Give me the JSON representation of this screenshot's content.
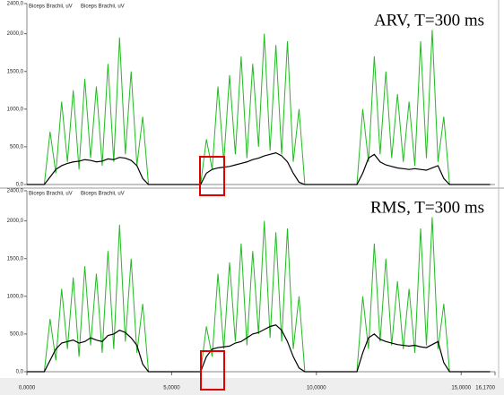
{
  "chart_data": [
    {
      "type": "line",
      "annotation": "ARV, T=300 ms",
      "x": [
        0,
        0.2,
        0.4,
        0.6,
        0.8,
        1,
        1.2,
        1.4,
        1.6,
        1.8,
        2,
        2.2,
        2.4,
        2.6,
        2.8,
        3,
        3.2,
        3.4,
        3.6,
        3.8,
        4,
        4.2,
        4.4,
        4.6,
        4.8,
        5,
        5.2,
        5.4,
        5.6,
        5.8,
        6,
        6.2,
        6.4,
        6.6,
        6.8,
        7,
        7.2,
        7.4,
        7.6,
        7.8,
        8,
        8.2,
        8.4,
        8.6,
        8.8,
        9,
        9.2,
        9.4,
        9.6,
        9.8,
        10,
        10.2,
        10.4,
        10.6,
        10.8,
        11,
        11.2,
        11.4,
        11.6,
        11.8,
        12,
        12.2,
        12.4,
        12.6,
        12.8,
        13,
        13.2,
        13.4,
        13.6,
        13.8,
        14,
        14.2,
        14.4,
        14.6,
        14.8,
        15,
        15.2,
        15.4,
        15.6,
        15.8,
        16
      ],
      "series": [
        {
          "name": "Biceps Brachii, uV",
          "color": "#22bb22",
          "values": [
            0,
            0,
            0,
            0,
            700,
            150,
            1100,
            300,
            1250,
            200,
            1400,
            350,
            1300,
            250,
            1600,
            300,
            1950,
            400,
            1500,
            250,
            900,
            0,
            0,
            0,
            0,
            0,
            0,
            0,
            0,
            0,
            0,
            600,
            200,
            1300,
            300,
            1450,
            400,
            1700,
            350,
            1600,
            500,
            2000,
            450,
            1850,
            400,
            1900,
            300,
            1000,
            0,
            0,
            0,
            0,
            0,
            0,
            0,
            0,
            0,
            0,
            1000,
            300,
            1700,
            400,
            1500,
            350,
            1200,
            300,
            1100,
            250,
            1900,
            350,
            2050,
            300,
            900,
            0,
            0,
            0,
            0,
            0,
            0,
            0,
            0
          ]
        },
        {
          "name": "Biceps Brachii, uV",
          "color": "#000000",
          "values": [
            0,
            0,
            0,
            0,
            100,
            200,
            250,
            280,
            300,
            310,
            330,
            320,
            300,
            310,
            340,
            330,
            360,
            350,
            320,
            250,
            80,
            0,
            0,
            0,
            0,
            0,
            0,
            0,
            0,
            0,
            0,
            150,
            200,
            220,
            230,
            240,
            260,
            280,
            300,
            330,
            350,
            380,
            400,
            420,
            380,
            300,
            150,
            30,
            0,
            0,
            0,
            0,
            0,
            0,
            0,
            0,
            0,
            0,
            150,
            350,
            400,
            300,
            260,
            240,
            220,
            210,
            200,
            210,
            200,
            190,
            220,
            250,
            80,
            0,
            0,
            0,
            0,
            0,
            0,
            0,
            0
          ]
        }
      ],
      "xlim": [
        0,
        16.17
      ],
      "ylim": [
        0,
        2400
      ],
      "yticks": [
        {
          "value": 0,
          "label": "0,0"
        },
        {
          "value": 500,
          "label": "500,0"
        },
        {
          "value": 1000,
          "label": "1000,0"
        },
        {
          "value": 1500,
          "label": "1500,0"
        },
        {
          "value": 2000,
          "label": "2000,0"
        },
        {
          "value": 2400,
          "label": "2400,0"
        }
      ]
    },
    {
      "type": "line",
      "annotation": "RMS, T=300 ms",
      "x": [
        0,
        0.2,
        0.4,
        0.6,
        0.8,
        1,
        1.2,
        1.4,
        1.6,
        1.8,
        2,
        2.2,
        2.4,
        2.6,
        2.8,
        3,
        3.2,
        3.4,
        3.6,
        3.8,
        4,
        4.2,
        4.4,
        4.6,
        4.8,
        5,
        5.2,
        5.4,
        5.6,
        5.8,
        6,
        6.2,
        6.4,
        6.6,
        6.8,
        7,
        7.2,
        7.4,
        7.6,
        7.8,
        8,
        8.2,
        8.4,
        8.6,
        8.8,
        9,
        9.2,
        9.4,
        9.6,
        9.8,
        10,
        10.2,
        10.4,
        10.6,
        10.8,
        11,
        11.2,
        11.4,
        11.6,
        11.8,
        12,
        12.2,
        12.4,
        12.6,
        12.8,
        13,
        13.2,
        13.4,
        13.6,
        13.8,
        14,
        14.2,
        14.4,
        14.6,
        14.8,
        15,
        15.2,
        15.4,
        15.6,
        15.8,
        16
      ],
      "series": [
        {
          "name": "Biceps Brachii, uV",
          "color": "#22bb22",
          "values": [
            0,
            0,
            0,
            0,
            700,
            150,
            1100,
            300,
            1250,
            200,
            1400,
            350,
            1300,
            250,
            1600,
            300,
            1950,
            400,
            1500,
            250,
            900,
            0,
            0,
            0,
            0,
            0,
            0,
            0,
            0,
            0,
            0,
            600,
            200,
            1300,
            300,
            1450,
            400,
            1700,
            350,
            1600,
            500,
            2000,
            450,
            1850,
            400,
            1900,
            300,
            1000,
            0,
            0,
            0,
            0,
            0,
            0,
            0,
            0,
            0,
            0,
            1000,
            300,
            1700,
            400,
            1500,
            350,
            1200,
            300,
            1100,
            250,
            1900,
            350,
            2050,
            300,
            900,
            0,
            0,
            0,
            0,
            0,
            0,
            0,
            0
          ]
        },
        {
          "name": "Biceps Brachii, uV",
          "color": "#000000",
          "values": [
            0,
            0,
            0,
            0,
            150,
            300,
            380,
            400,
            420,
            380,
            400,
            450,
            420,
            400,
            480,
            500,
            550,
            520,
            450,
            350,
            100,
            0,
            0,
            0,
            0,
            0,
            0,
            0,
            0,
            0,
            0,
            200,
            300,
            320,
            330,
            340,
            380,
            400,
            450,
            500,
            520,
            560,
            600,
            620,
            550,
            400,
            200,
            50,
            0,
            0,
            0,
            0,
            0,
            0,
            0,
            0,
            0,
            0,
            250,
            450,
            500,
            430,
            400,
            380,
            360,
            350,
            340,
            350,
            330,
            320,
            360,
            400,
            120,
            0,
            0,
            0,
            0,
            0,
            0,
            0,
            0
          ]
        }
      ],
      "xlim": [
        0,
        16.17
      ],
      "ylim": [
        0,
        2400
      ],
      "yticks": [
        {
          "value": 0,
          "label": "0,0"
        },
        {
          "value": 500,
          "label": "500,0"
        },
        {
          "value": 1000,
          "label": "1000,0"
        },
        {
          "value": 1500,
          "label": "1500,0"
        },
        {
          "value": 2000,
          "label": "2000,0"
        },
        {
          "value": 2400,
          "label": "2400,0"
        }
      ],
      "xticks": [
        {
          "value": 0,
          "label": "0,0000"
        },
        {
          "value": 5,
          "label": "5,0000"
        },
        {
          "value": 10,
          "label": "10,0000"
        },
        {
          "value": 15,
          "label": "15,0000"
        },
        {
          "value": 16.17,
          "label": "16,1700"
        }
      ]
    }
  ]
}
